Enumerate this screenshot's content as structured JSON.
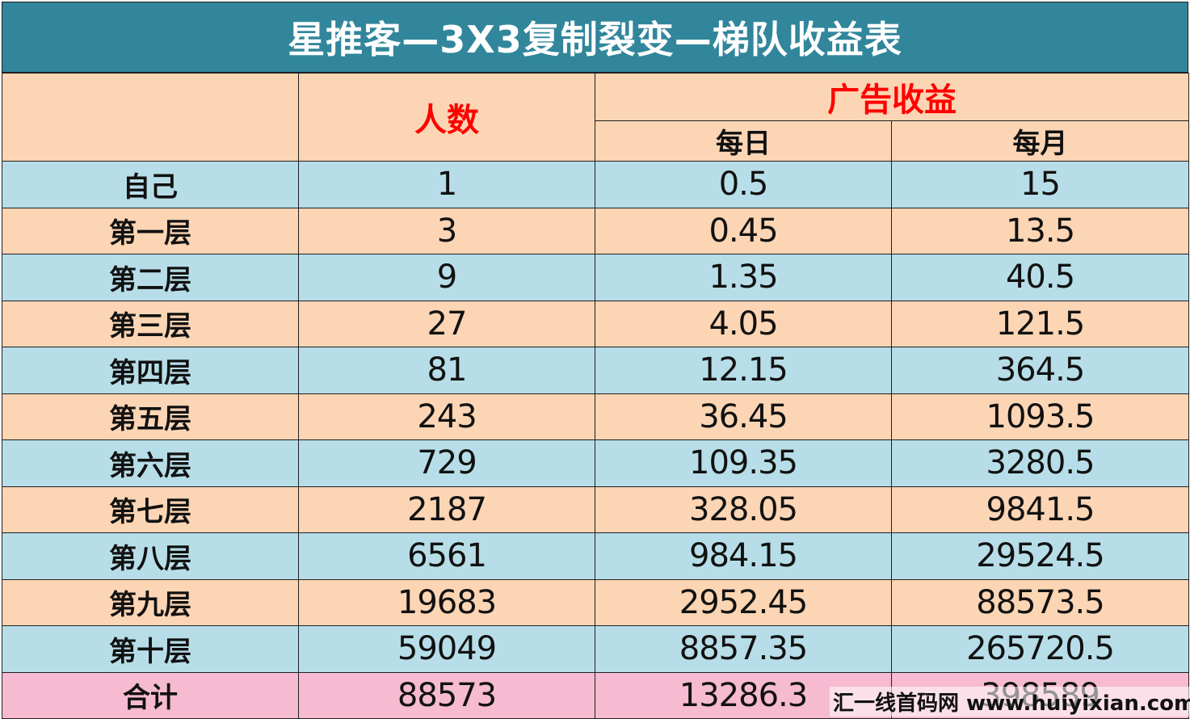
{
  "title": "星推客—3X3复制裂变—梯队收益表",
  "headers": {
    "people": "人数",
    "ad_revenue": "广告收益",
    "daily": "每日",
    "monthly": "每月"
  },
  "rows": [
    {
      "label": "自己",
      "people": "1",
      "daily": "0.5",
      "monthly": "15"
    },
    {
      "label": "第一层",
      "people": "3",
      "daily": "0.45",
      "monthly": "13.5"
    },
    {
      "label": "第二层",
      "people": "9",
      "daily": "1.35",
      "monthly": "40.5"
    },
    {
      "label": "第三层",
      "people": "27",
      "daily": "4.05",
      "monthly": "121.5"
    },
    {
      "label": "第四层",
      "people": "81",
      "daily": "12.15",
      "monthly": "364.5"
    },
    {
      "label": "第五层",
      "people": "243",
      "daily": "36.45",
      "monthly": "1093.5"
    },
    {
      "label": "第六层",
      "people": "729",
      "daily": "109.35",
      "monthly": "3280.5"
    },
    {
      "label": "第七层",
      "people": "2187",
      "daily": "328.05",
      "monthly": "9841.5"
    },
    {
      "label": "第八层",
      "people": "6561",
      "daily": "984.15",
      "monthly": "29524.5"
    },
    {
      "label": "第九层",
      "people": "19683",
      "daily": "2952.45",
      "monthly": "88573.5"
    },
    {
      "label": "第十层",
      "people": "59049",
      "daily": "8857.35",
      "monthly": "265720.5"
    }
  ],
  "total": {
    "label": "合计",
    "people": "88573",
    "daily": "13286.3",
    "monthly": "398589"
  },
  "watermark": "汇一线首码网 www.huiyixian.com",
  "colors": {
    "title_bg": "#31869b",
    "header_bg": "#fcd5b4",
    "row_blue": "#b7dee8",
    "row_peach": "#fcd5b4",
    "total_bg": "#f6bbd0",
    "header_red": "#ff0000"
  }
}
